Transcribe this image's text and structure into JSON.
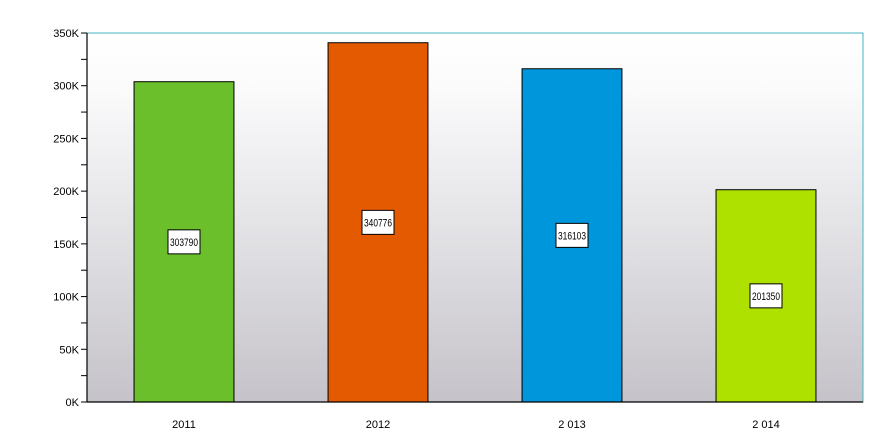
{
  "chart_data": {
    "type": "bar",
    "categories": [
      "2011",
      "2012",
      "2 013",
      "2 014"
    ],
    "values": [
      303790,
      340776,
      316103,
      201350
    ],
    "data_labels": [
      "303790",
      "340776",
      "316103",
      "201350"
    ],
    "colors": [
      "#6abf2a",
      "#e35a00",
      "#0096db",
      "#aee000"
    ],
    "title": "",
    "xlabel": "",
    "ylabel": "",
    "ylim": [
      0,
      350000
    ],
    "yticks": [
      0,
      50000,
      100000,
      150000,
      200000,
      250000,
      300000,
      350000
    ],
    "ytick_labels": [
      "0K",
      "50K",
      "100K",
      "150K",
      "200K",
      "250K",
      "300K",
      "350K"
    ],
    "grid": false,
    "legend": "none",
    "plot_background": "gradient-white-to-gray",
    "frame_color": "#45b5c4"
  }
}
